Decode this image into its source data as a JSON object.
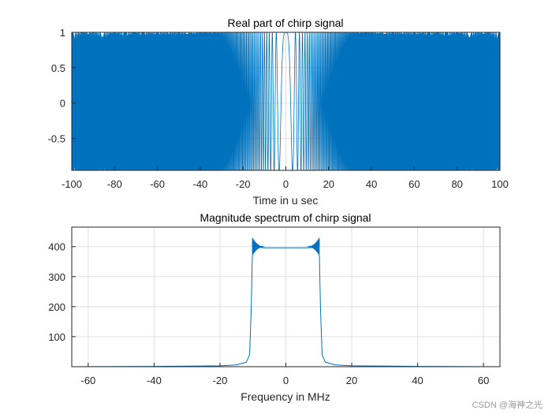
{
  "chart_data": [
    {
      "type": "line",
      "title": "Real part of chirp signal",
      "xlabel": "Time in u sec",
      "ylabel": "",
      "xlim": [
        -100,
        100
      ],
      "ylim": [
        -0.95,
        1
      ],
      "grid": true,
      "x_ticks": [
        "-100",
        "-80",
        "-60",
        "-40",
        "-20",
        "0",
        "20",
        "40",
        "60",
        "80",
        "100"
      ],
      "y_ticks": [
        "1",
        "0.5",
        "0",
        "-0.5"
      ],
      "series": [
        {
          "color": "#0072BD",
          "description_values": {
            "t_range_usec": [
              -100,
              100
            ],
            "amplitude": 1,
            "bandwidth_MHz": 20,
            "center_frequency_MHz": 0
          }
        }
      ]
    },
    {
      "type": "line",
      "title": "Magnitude spectrum of chirp signal",
      "xlabel": "Frequency in MHz",
      "ylabel": "",
      "xlim": [
        -65,
        65
      ],
      "ylim": [
        0,
        465
      ],
      "grid": true,
      "x_ticks": [
        "-60",
        "-40",
        "-20",
        "0",
        "20",
        "40",
        "60"
      ],
      "y_ticks": [
        "400",
        "300",
        "200",
        "100"
      ],
      "series": [
        {
          "color": "#0072BD",
          "x": [
            -65,
            -40,
            -20,
            -15,
            -12,
            -11,
            -10.5,
            -10.2,
            -10,
            -9.5,
            -9,
            -8,
            -6,
            -4,
            -2,
            0,
            2,
            4,
            6,
            8,
            9,
            9.5,
            10,
            10.2,
            10.5,
            11,
            12,
            15,
            20,
            40,
            65
          ],
          "y": [
            0,
            1,
            3,
            6,
            15,
            40,
            200,
            360,
            405,
            400,
            398,
            397,
            396,
            396,
            396,
            396,
            396,
            396,
            396,
            397,
            398,
            400,
            405,
            360,
            200,
            40,
            15,
            6,
            3,
            1,
            0
          ]
        }
      ]
    }
  ],
  "watermark": "CSDN @海神之光"
}
